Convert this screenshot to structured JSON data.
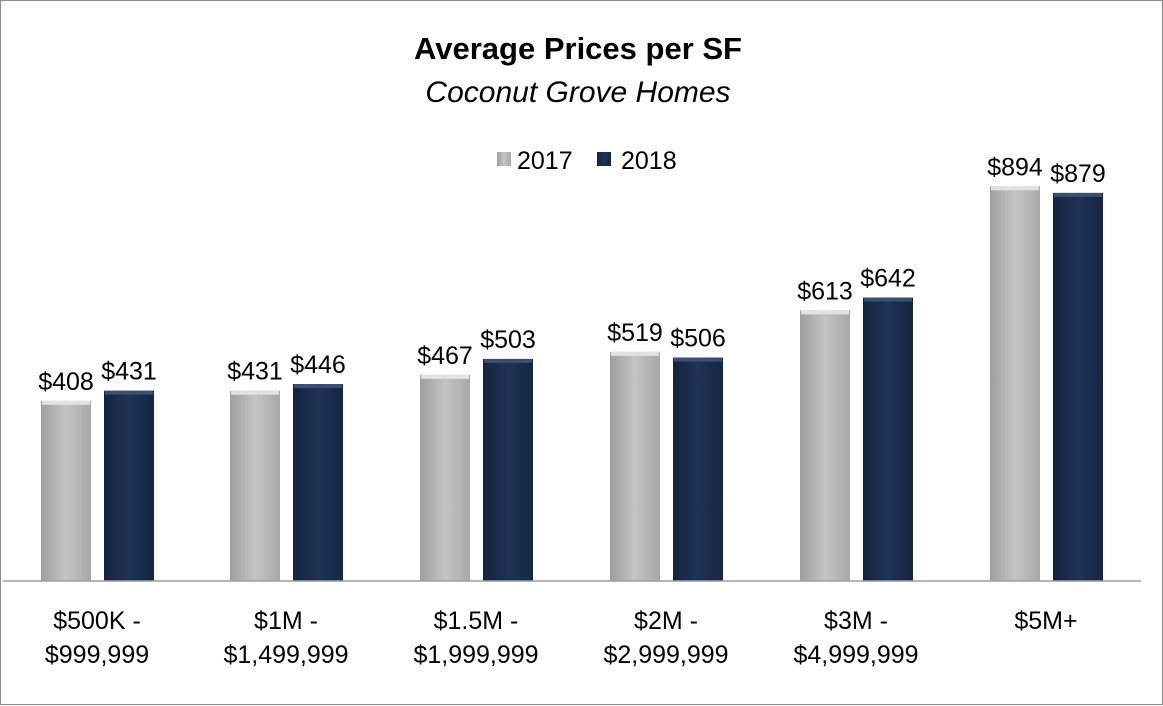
{
  "chart_data": {
    "type": "bar",
    "title": "Average Prices per SF",
    "subtitle": "Coconut Grove Homes",
    "categories": [
      [
        "$500K -",
        "$999,999"
      ],
      [
        "$1M -",
        "$1,499,999"
      ],
      [
        "$1.5M -",
        "$1,999,999"
      ],
      [
        "$2M -",
        "$2,999,999"
      ],
      [
        "$3M -",
        "$4,999,999"
      ],
      [
        "$5M+"
      ]
    ],
    "series": [
      {
        "name": "2017",
        "color": "#b3b3b3",
        "values": [
          408,
          431,
          467,
          519,
          613,
          894
        ],
        "labels": [
          "$408",
          "$431",
          "$467",
          "$519",
          "$613",
          "$894"
        ]
      },
      {
        "name": "2018",
        "color": "#1a2b4a",
        "values": [
          431,
          446,
          503,
          506,
          642,
          879
        ],
        "labels": [
          "$431",
          "$446",
          "$503",
          "$506",
          "$642",
          "$879"
        ]
      }
    ],
    "ylim": [
      0,
      1000
    ],
    "grid": false,
    "legend_position": "top-center"
  }
}
